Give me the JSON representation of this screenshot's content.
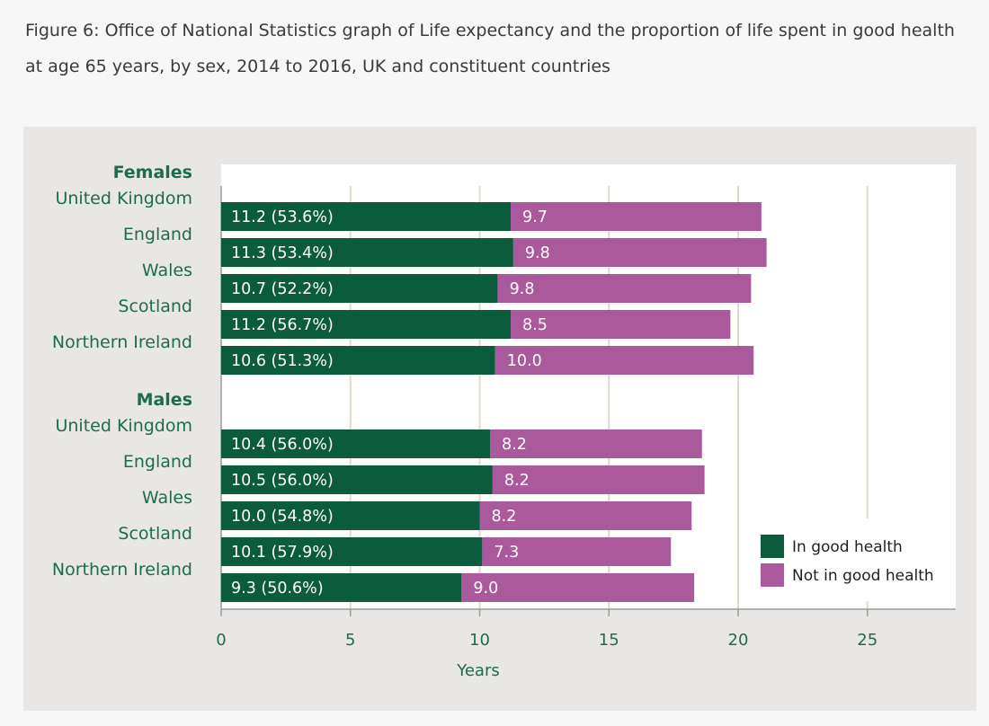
{
  "caption": "Figure 6: Office of National Statistics graph of Life expectancy and the proportion of life spent in good health at age 65 years, by sex, 2014 to 2016, UK and constituent countries",
  "colors": {
    "good": "#0b5c3c",
    "notgood": "#a9599c",
    "panel": "#e8e7e6",
    "plot": "#ffffff",
    "grid": "#e3d9c9",
    "text": "#1f6b4e"
  },
  "chart_data": {
    "type": "bar",
    "orientation": "horizontal",
    "stacked": true,
    "xlabel": "Years",
    "xlim": [
      0,
      28.5
    ],
    "xticks": [
      "0",
      "5",
      "10",
      "15",
      "20",
      "25"
    ],
    "grid": true,
    "legend_position": "bottom-right",
    "series_names": [
      "In good health",
      "Not in good health"
    ],
    "groups": [
      {
        "label": "Females",
        "rows": [
          {
            "category": "United Kingdom",
            "good": 11.2,
            "notgood": 9.7,
            "good_label": "11.2 (53.6%)",
            "notgood_label": "9.7"
          },
          {
            "category": "England",
            "good": 11.3,
            "notgood": 9.8,
            "good_label": "11.3 (53.4%)",
            "notgood_label": "9.8"
          },
          {
            "category": "Wales",
            "good": 10.7,
            "notgood": 9.8,
            "good_label": "10.7 (52.2%)",
            "notgood_label": "9.8"
          },
          {
            "category": "Scotland",
            "good": 11.2,
            "notgood": 8.5,
            "good_label": "11.2 (56.7%)",
            "notgood_label": "8.5"
          },
          {
            "category": "Northern Ireland",
            "good": 10.6,
            "notgood": 10.0,
            "good_label": "10.6 (51.3%)",
            "notgood_label": "10.0"
          }
        ]
      },
      {
        "label": "Males",
        "rows": [
          {
            "category": "United Kingdom",
            "good": 10.4,
            "notgood": 8.2,
            "good_label": "10.4 (56.0%)",
            "notgood_label": "8.2"
          },
          {
            "category": "England",
            "good": 10.5,
            "notgood": 8.2,
            "good_label": "10.5 (56.0%)",
            "notgood_label": "8.2"
          },
          {
            "category": "Wales",
            "good": 10.0,
            "notgood": 8.2,
            "good_label": "10.0 (54.8%)",
            "notgood_label": "8.2"
          },
          {
            "category": "Scotland",
            "good": 10.1,
            "notgood": 7.3,
            "good_label": "10.1 (57.9%)",
            "notgood_label": "7.3"
          },
          {
            "category": "Northern Ireland",
            "good": 9.3,
            "notgood": 9.0,
            "good_label": "9.3 (50.6%)",
            "notgood_label": "9.0"
          }
        ]
      }
    ]
  }
}
